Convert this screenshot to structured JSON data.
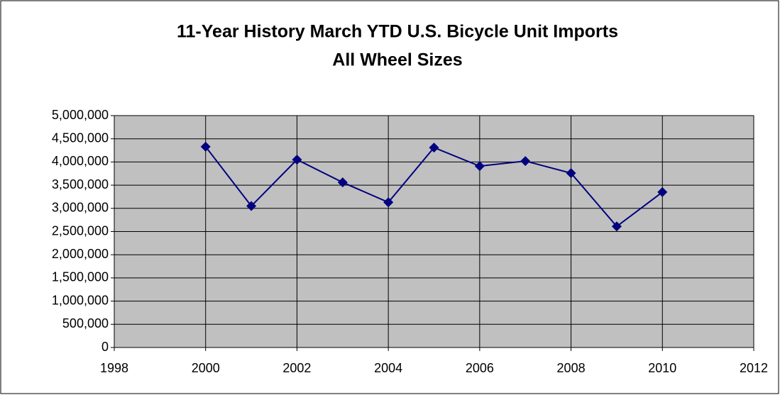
{
  "chart_data": {
    "type": "line",
    "title": [
      "11-Year History March YTD U.S. Bicycle Unit Imports",
      "All Wheel Sizes"
    ],
    "x": [
      2000,
      2001,
      2002,
      2003,
      2004,
      2005,
      2006,
      2007,
      2008,
      2009,
      2010
    ],
    "series": [
      {
        "color": "#000080",
        "values": [
          4330000,
          3050000,
          4050000,
          3560000,
          3130000,
          4310000,
          3910000,
          4020000,
          3760000,
          2610000,
          3350000
        ]
      }
    ],
    "xlim": [
      1998,
      2012
    ],
    "xticks": [
      1998,
      2000,
      2002,
      2004,
      2006,
      2008,
      2010,
      2012
    ],
    "ylim": [
      0,
      5000000
    ],
    "yticks": [
      0,
      {
        "value": 500000,
        "label": "500,000"
      },
      {
        "value": 1000000,
        "label": "1,000,000"
      },
      {
        "value": 1500000,
        "label": "1,500,000"
      },
      {
        "value": 2000000,
        "label": "2,000,000"
      },
      {
        "value": 2500000,
        "label": "2,500,000"
      },
      {
        "value": 3000000,
        "label": "3,000,000"
      },
      {
        "value": 3500000,
        "label": "3,500,000"
      },
      {
        "value": 4000000,
        "label": "4,000,000"
      },
      {
        "value": 4500000,
        "label": "4,500,000"
      },
      {
        "value": 5000000,
        "label": "5,000,000"
      }
    ],
    "grid": true,
    "plot_background": "#c0c0c0"
  }
}
